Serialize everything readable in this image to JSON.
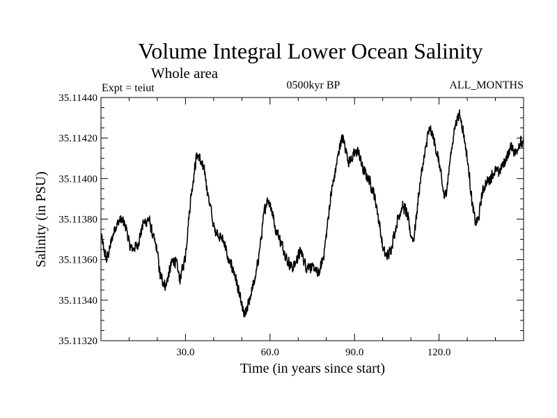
{
  "chart_data": {
    "type": "line",
    "title": "Volume Integral Lower Ocean Salinity",
    "subtitle": "Whole area",
    "annotations": {
      "experiment": "Expt = teiut",
      "period": "0500kyr BP",
      "months": "ALL_MONTHS"
    },
    "xlabel": "Time (in years since start)",
    "ylabel": "Salinity (in PSU)",
    "xlim": [
      0,
      150
    ],
    "ylim": [
      35.1132,
      35.1144
    ],
    "x_ticks": [
      30,
      60,
      90,
      120
    ],
    "x_tick_labels": [
      "30.0",
      "60.0",
      "90.0",
      "120.0"
    ],
    "y_ticks": [
      35.1132,
      35.1134,
      35.1136,
      35.1138,
      35.114,
      35.1142,
      35.1144
    ],
    "y_tick_labels": [
      "35.11320",
      "35.11340",
      "35.11360",
      "35.11380",
      "35.11400",
      "35.11420",
      "35.11440"
    ],
    "noise_amplitude": 3.5e-05,
    "samples_per_year": 12,
    "series": [
      {
        "name": "Volume integral lower ocean salinity",
        "color": "#000000",
        "x": [
          0,
          1,
          2,
          3,
          5,
          7,
          9,
          10,
          11,
          13,
          15,
          17,
          18,
          20,
          21,
          23,
          25,
          26,
          27,
          28,
          30,
          31,
          32,
          33,
          34,
          35,
          37,
          38,
          39,
          40,
          42,
          43,
          44,
          45,
          47,
          48,
          49,
          50,
          51,
          52,
          53,
          55,
          56,
          57,
          58,
          59,
          60,
          61,
          62,
          63,
          64,
          65,
          66,
          67,
          68,
          69,
          70,
          71,
          72,
          73,
          74,
          75,
          76,
          77,
          78,
          79,
          80,
          81,
          82,
          83,
          84,
          85,
          86,
          87,
          88,
          89,
          90,
          91,
          92,
          93,
          94,
          95,
          96,
          97,
          98,
          99,
          100,
          101,
          102,
          103,
          104,
          105,
          106,
          107,
          108,
          109,
          110,
          111,
          112,
          113,
          114,
          115,
          116,
          117,
          118,
          119,
          120,
          121,
          122,
          123,
          124,
          125,
          126,
          127,
          128,
          129,
          130,
          131,
          132,
          133,
          134,
          135,
          136,
          137,
          138,
          139,
          140,
          141,
          142,
          143,
          144,
          145,
          146,
          147,
          148,
          149,
          150
        ],
        "y": [
          35.11372,
          35.11365,
          35.1136,
          35.11365,
          35.11376,
          35.1138,
          35.11376,
          35.11368,
          35.11365,
          35.11367,
          35.11378,
          35.1138,
          35.11374,
          35.11364,
          35.11352,
          35.11347,
          35.11358,
          35.1136,
          35.11357,
          35.1135,
          35.11362,
          35.11378,
          35.11392,
          35.11402,
          35.11412,
          35.1141,
          35.11402,
          35.11392,
          35.11385,
          35.11376,
          35.11372,
          35.1137,
          35.11368,
          35.1136,
          35.11355,
          35.1135,
          35.11343,
          35.11337,
          35.11332,
          35.11336,
          35.11342,
          35.11352,
          35.11362,
          35.11372,
          35.11384,
          35.1139,
          35.11388,
          35.11382,
          35.11375,
          35.11372,
          35.11368,
          35.11365,
          35.1136,
          35.11358,
          35.11356,
          35.11358,
          35.11362,
          35.11364,
          35.1136,
          35.11356,
          35.11358,
          35.11355,
          35.11356,
          35.11352,
          35.11356,
          35.11362,
          35.11372,
          35.11385,
          35.11395,
          35.11402,
          35.1141,
          35.11418,
          35.1142,
          35.11414,
          35.11408,
          35.1141,
          35.11412,
          35.11414,
          35.1141,
          35.11404,
          35.11402,
          35.114,
          35.11396,
          35.11392,
          35.11385,
          35.11376,
          35.11366,
          35.11362,
          35.11362,
          35.11366,
          35.11372,
          35.11378,
          35.11383,
          35.11386,
          35.11385,
          35.1138,
          35.11372,
          35.1137,
          35.11382,
          35.11395,
          35.11405,
          35.11412,
          35.11422,
          35.11424,
          35.1142,
          35.11414,
          35.11408,
          35.11398,
          35.1139,
          35.11398,
          35.1141,
          35.1142,
          35.11428,
          35.11432,
          35.11428,
          35.1142,
          35.1141,
          35.11398,
          35.11385,
          35.11378,
          35.1138,
          35.1139,
          35.11396,
          35.11398,
          35.114,
          35.11402,
          35.11404,
          35.11403,
          35.11405,
          35.11408,
          35.1141,
          35.11414,
          35.11416,
          35.11412,
          35.11416,
          35.11418,
          35.11416
        ]
      }
    ]
  }
}
